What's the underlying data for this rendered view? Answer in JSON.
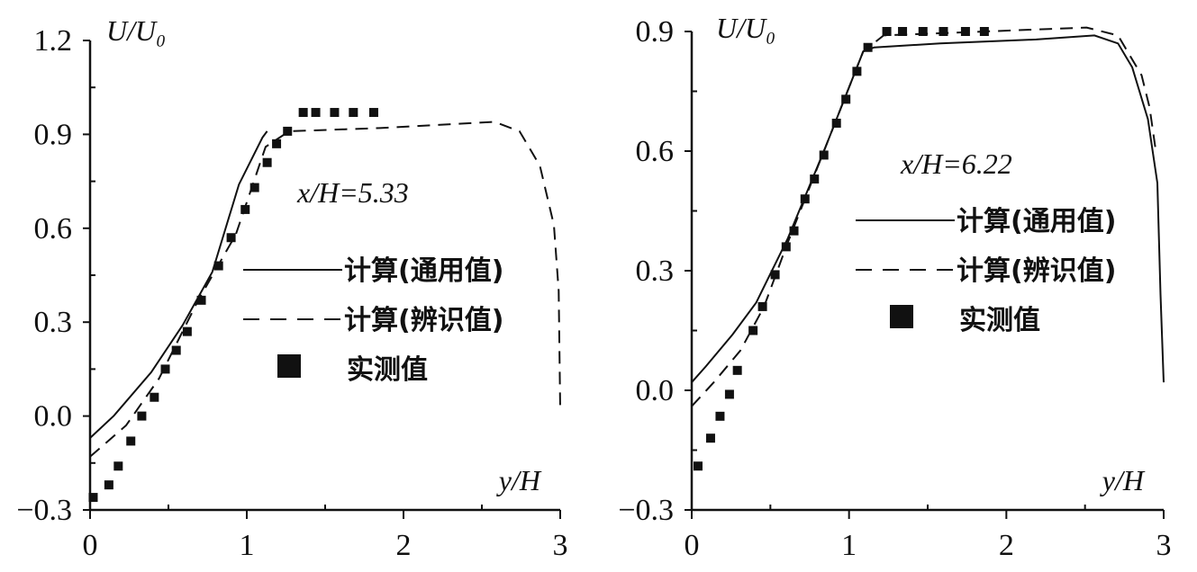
{
  "chart_data": [
    {
      "type": "line",
      "annotation": "x/H=5.33",
      "xlabel": "y/H",
      "ylabel": "U/U₀",
      "xlim": [
        0,
        3
      ],
      "ylim": [
        -0.3,
        1.2
      ],
      "xticks": [
        "0",
        "1",
        "2",
        "3"
      ],
      "yticks": [
        "-0.3",
        "0.0",
        "0.3",
        "0.6",
        "0.9",
        "1.2"
      ],
      "grid": false,
      "legend_position": "center-right",
      "series": [
        {
          "name": "计算(通用值)",
          "style": "solid",
          "x": [
            0,
            0.15,
            0.39,
            0.59,
            0.78,
            0.95,
            1.1,
            1.13
          ],
          "y": [
            -0.07,
            0.0,
            0.14,
            0.29,
            0.46,
            0.74,
            0.89,
            0.91
          ]
        },
        {
          "name": "计算(辨识值)",
          "style": "dashed",
          "x": [
            0,
            0.23,
            0.44,
            0.69,
            0.93,
            1.12,
            1.27,
            1.85,
            2.58,
            2.74,
            2.87,
            2.96,
            2.99,
            3.0
          ],
          "y": [
            -0.13,
            -0.03,
            0.12,
            0.37,
            0.58,
            0.86,
            0.91,
            0.92,
            0.94,
            0.91,
            0.8,
            0.61,
            0.4,
            0.02
          ]
        },
        {
          "name": "实测值",
          "style": "marker",
          "x": [
            0.02,
            0.12,
            0.18,
            0.26,
            0.33,
            0.41,
            0.48,
            0.55,
            0.62,
            0.71,
            0.82,
            0.9,
            0.99,
            1.05,
            1.13,
            1.19,
            1.26,
            1.36,
            1.44,
            1.56,
            1.68,
            1.81
          ],
          "y": [
            -0.26,
            -0.22,
            -0.16,
            -0.08,
            0.0,
            0.06,
            0.15,
            0.21,
            0.27,
            0.37,
            0.48,
            0.57,
            0.66,
            0.73,
            0.81,
            0.87,
            0.91,
            0.97,
            0.97,
            0.97,
            0.97,
            0.97
          ]
        }
      ]
    },
    {
      "type": "line",
      "annotation": "x/H=6.22",
      "xlabel": "y/H",
      "ylabel": "U/U₀",
      "xlim": [
        0,
        3
      ],
      "ylim": [
        -0.3,
        0.9
      ],
      "xticks": [
        "0",
        "1",
        "2",
        "3"
      ],
      "yticks": [
        "-0.3",
        "0.0",
        "0.3",
        "0.6",
        "0.9"
      ],
      "grid": false,
      "legend_position": "center-right",
      "series": [
        {
          "name": "计算(通用值)",
          "style": "solid",
          "x": [
            0,
            0.09,
            0.26,
            0.41,
            0.61,
            0.85,
            1.09,
            1.16,
            1.58,
            2.19,
            2.56,
            2.71,
            2.8,
            2.9,
            2.96,
            2.98,
            3.0
          ],
          "y": [
            0.02,
            0.06,
            0.14,
            0.22,
            0.38,
            0.61,
            0.85,
            0.86,
            0.87,
            0.88,
            0.89,
            0.87,
            0.81,
            0.68,
            0.52,
            0.24,
            0.02
          ]
        },
        {
          "name": "计算(辨识值)",
          "style": "dashed",
          "x": [
            0,
            0.14,
            0.31,
            0.46,
            0.61,
            0.85,
            1.09,
            1.22,
            2.51,
            2.71,
            2.86,
            2.91,
            2.95
          ],
          "y": [
            -0.04,
            0.02,
            0.1,
            0.21,
            0.37,
            0.61,
            0.85,
            0.89,
            0.91,
            0.89,
            0.79,
            0.71,
            0.6
          ]
        },
        {
          "name": "实测值",
          "style": "marker",
          "x": [
            0.04,
            0.12,
            0.18,
            0.24,
            0.29,
            0.39,
            0.45,
            0.53,
            0.6,
            0.65,
            0.72,
            0.78,
            0.84,
            0.92,
            0.98,
            1.05,
            1.12,
            1.24,
            1.34,
            1.47,
            1.6,
            1.74,
            1.86
          ],
          "y": [
            -0.19,
            -0.12,
            -0.065,
            -0.01,
            0.05,
            0.15,
            0.21,
            0.29,
            0.36,
            0.4,
            0.48,
            0.53,
            0.59,
            0.67,
            0.73,
            0.8,
            0.86,
            0.9,
            0.9,
            0.9,
            0.9,
            0.9,
            0.9
          ]
        }
      ]
    }
  ]
}
